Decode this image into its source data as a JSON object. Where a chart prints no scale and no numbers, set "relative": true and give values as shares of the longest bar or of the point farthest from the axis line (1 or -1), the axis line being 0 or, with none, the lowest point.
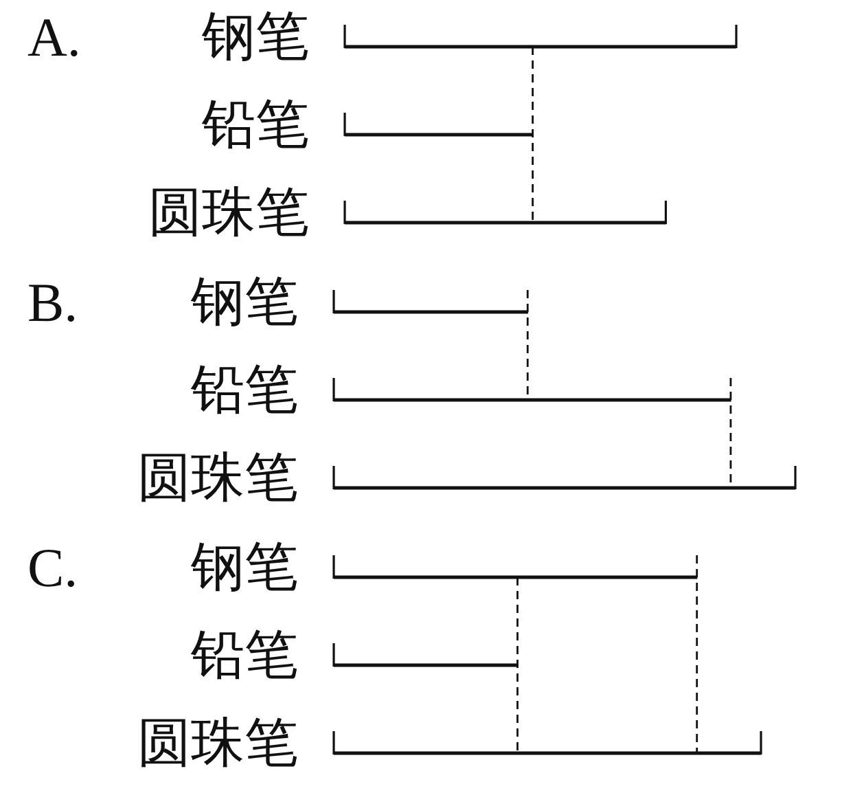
{
  "chart_data": [
    {
      "type": "bar",
      "orientation": "horizontal",
      "relative": true,
      "title": "A.",
      "categories": [
        "钢笔",
        "铅笔",
        "圆珠笔"
      ],
      "values": [
        1,
        0.48,
        0.82
      ],
      "color": "#111111",
      "ref_lines": [
        {
          "axis": "x",
          "value": 0.48,
          "color": "#111111",
          "line_style": "dashed"
        }
      ]
    },
    {
      "type": "bar",
      "orientation": "horizontal",
      "relative": true,
      "title": "B.",
      "categories": [
        "钢笔",
        "铅笔",
        "圆珠笔"
      ],
      "values": [
        0.42,
        0.86,
        1
      ],
      "color": "#111111",
      "ref_lines": [
        {
          "axis": "x",
          "value": 0.42,
          "color": "#111111",
          "line_style": "dashed"
        },
        {
          "axis": "x",
          "value": 0.86,
          "color": "#111111",
          "line_style": "dashed"
        }
      ]
    },
    {
      "type": "bar",
      "orientation": "horizontal",
      "relative": true,
      "title": "C.",
      "categories": [
        "钢笔",
        "铅笔",
        "圆珠笔"
      ],
      "values": [
        0.85,
        0.43,
        1
      ],
      "color": "#111111",
      "ref_lines": [
        {
          "axis": "x",
          "value": 0.43,
          "color": "#111111",
          "line_style": "dashed"
        },
        {
          "axis": "x",
          "value": 0.85,
          "color": "#111111",
          "line_style": "dashed"
        }
      ]
    }
  ]
}
